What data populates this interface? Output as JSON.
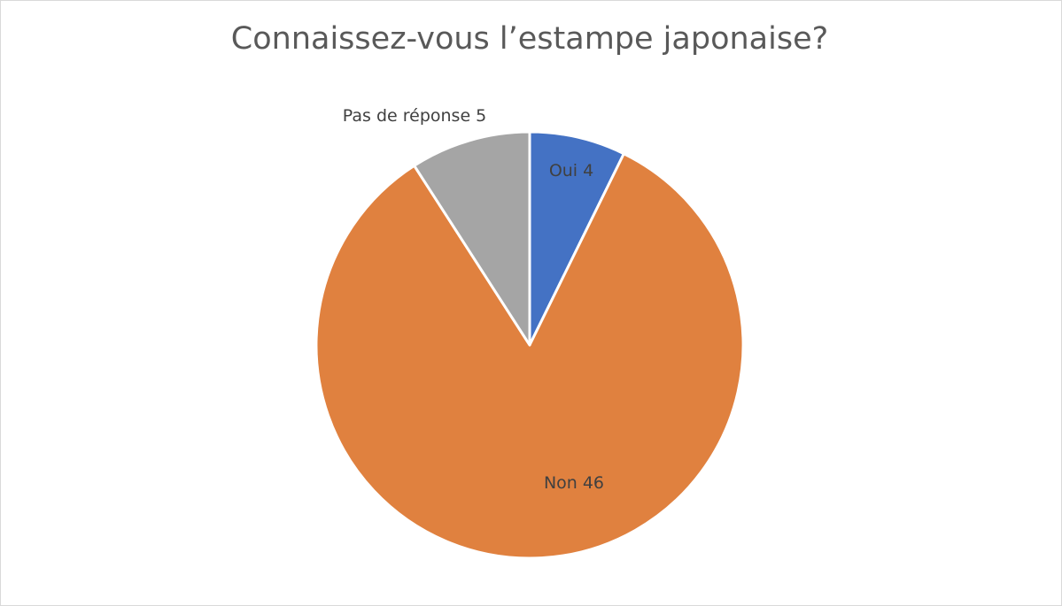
{
  "chart_data": {
    "type": "pie",
    "title": "Connaissez-vous l’estampe japonaise?",
    "categories": [
      "Oui",
      "Non",
      "Pas de réponse"
    ],
    "values": [
      4,
      46,
      5
    ],
    "colors": [
      "#4472c4",
      "#e0813f",
      "#a5a5a5"
    ]
  }
}
